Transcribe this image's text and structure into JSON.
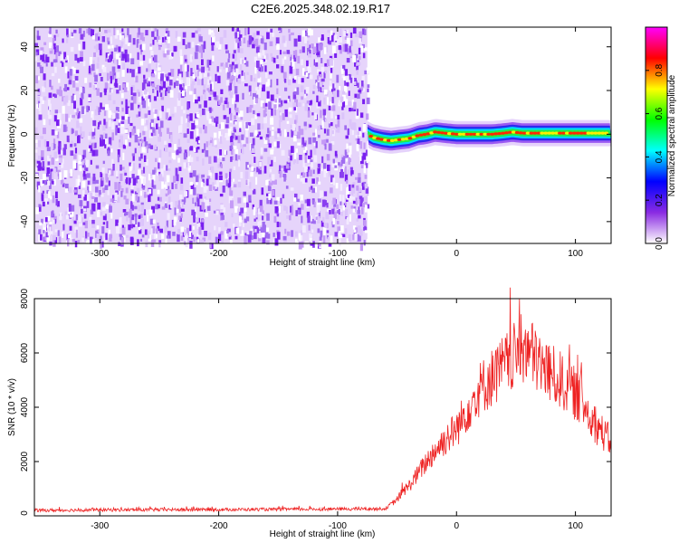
{
  "title": "C2E6.2025.348.02.19.R17",
  "chart_data": [
    {
      "type": "heatmap",
      "xlabel": "Height of straight line (km)",
      "ylabel": "Frequency (Hz)",
      "xlim": [
        -355,
        130
      ],
      "ylim": [
        -50,
        49
      ],
      "xticks": [
        -300,
        -200,
        -100,
        0,
        100
      ],
      "yticks": [
        -40,
        -20,
        0,
        20,
        40
      ],
      "colorbar": {
        "label": "Normalized spectral amplitude",
        "range": [
          0,
          1
        ],
        "ticks": [
          0.0,
          0.2,
          0.4,
          0.6,
          0.8
        ],
        "colormap": [
          "#ffffff",
          "#8a2be2",
          "#0000ff",
          "#00ffff",
          "#00ff00",
          "#ffff00",
          "#ff0000",
          "#ff00ff"
        ]
      },
      "noise_region_km": [
        -355,
        -75
      ],
      "signal_track": {
        "x": [
          -75,
          -70,
          -62,
          -55,
          -48,
          -40,
          -32,
          -25,
          -18,
          -10,
          0,
          10,
          20,
          30,
          40,
          47,
          55,
          65,
          75,
          85,
          95,
          105,
          115,
          125,
          130
        ],
        "y": [
          0,
          -1.5,
          -2.5,
          -3,
          -2.5,
          -2,
          -0.5,
          0,
          1,
          0.5,
          0,
          0,
          0,
          0,
          0.5,
          1,
          0.5,
          0.5,
          0.5,
          0.5,
          0.5,
          0.5,
          0.5,
          0.5,
          0.5
        ]
      }
    },
    {
      "type": "line",
      "xlabel": "Height of straight line (km)",
      "ylabel": "SNR (10 * v/v)",
      "xlim": [
        -355,
        130
      ],
      "ylim": [
        0,
        8000
      ],
      "xticks": [
        -300,
        -200,
        -100,
        0,
        100
      ],
      "yticks": [
        0,
        2000,
        4000,
        6000,
        8000
      ],
      "color": "#ee2222",
      "envelope": {
        "x": [
          -355,
          -300,
          -200,
          -100,
          -60,
          -50,
          -45,
          -40,
          -30,
          -20,
          -10,
          0,
          10,
          20,
          30,
          40,
          50,
          57,
          60,
          70,
          80,
          90,
          100,
          110,
          120,
          130
        ],
        "y": [
          200,
          220,
          230,
          250,
          260,
          600,
          900,
          1100,
          1700,
          2300,
          2800,
          3200,
          4000,
          4700,
          5100,
          5500,
          5900,
          6200,
          6100,
          5600,
          5200,
          4900,
          4500,
          3900,
          3200,
          2700
        ]
      }
    }
  ]
}
